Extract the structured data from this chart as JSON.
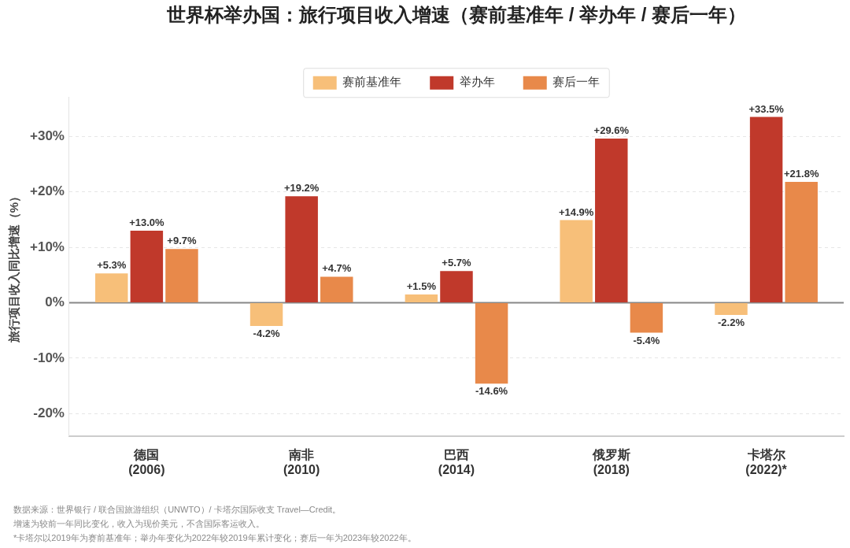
{
  "chart_data": {
    "type": "bar",
    "title": "世界杯举办国：旅行项目收入增速（赛前基准年 / 举办年 / 赛后一年）",
    "ylabel": "旅行项目收入同比增速（%）",
    "categories": [
      "德国\n(2006)",
      "南非\n(2010)",
      "巴西\n(2014)",
      "俄罗斯\n(2018)",
      "卡塔尔\n(2022)*"
    ],
    "series": [
      {
        "name": "赛前基准年",
        "color": "#f7bf79",
        "values": [
          5.3,
          -4.2,
          1.5,
          14.9,
          -2.2
        ],
        "value_labels": [
          "+5.3%",
          "-4.2%",
          "+1.5%",
          "+14.9%",
          "-2.2%"
        ]
      },
      {
        "name": "举办年",
        "color": "#c0392b",
        "values": [
          13.0,
          19.2,
          5.7,
          29.6,
          33.5
        ],
        "value_labels": [
          "+13.0%",
          "+19.2%",
          "+5.7%",
          "+29.6%",
          "+33.5%"
        ]
      },
      {
        "name": "赛后一年",
        "color": "#e8894a",
        "values": [
          9.7,
          4.7,
          -14.6,
          -5.4,
          21.8
        ],
        "value_labels": [
          "+9.7%",
          "+4.7%",
          "-14.6%",
          "-5.4%",
          "+21.8%"
        ]
      }
    ],
    "ylim": [
      -24,
      37
    ],
    "yticks": [
      {
        "value": -20,
        "label": "-20%"
      },
      {
        "value": -10,
        "label": "-10%"
      },
      {
        "value": 0,
        "label": "0%"
      },
      {
        "value": 10,
        "label": "+10%"
      },
      {
        "value": 20,
        "label": "+20%"
      },
      {
        "value": 30,
        "label": "+30%"
      }
    ],
    "grid": "y",
    "legend": "top",
    "ref_lines": [
      {
        "axis": "y",
        "value": 0,
        "color": "#888888"
      }
    ],
    "annotations": [
      "数据来源：世界银行 / 联合国旅游组织（UNWTO）/ 卡塔尔国际收支 Travel—Credit。",
      "增速为较前一年同比变化，收入为现价美元，不含国际客运收入。",
      "*卡塔尔以2019年为赛前基准年；举办年变化为2022年较2019年累计变化；赛后一年为2023年较2022年。"
    ]
  }
}
